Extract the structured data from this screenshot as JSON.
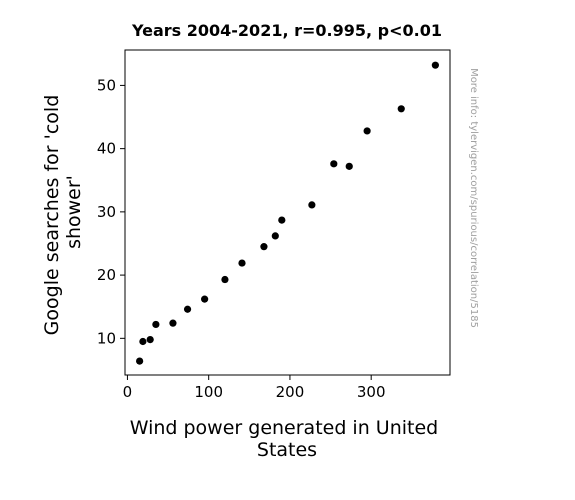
{
  "chart_data": {
    "type": "scatter",
    "title": "Years 2004-2021, r=0.995, p<0.01",
    "xlabel_lines": [
      "Wind power generated in United",
      "States"
    ],
    "ylabel_lines": [
      "Google searches for 'cold",
      "shower'"
    ],
    "xlim": [
      -3,
      397
    ],
    "ylim": [
      4.2,
      55.6
    ],
    "xticks": [
      0,
      100,
      200,
      300
    ],
    "yticks": [
      10,
      20,
      30,
      40,
      50
    ],
    "grid": false,
    "series": [
      {
        "marker_color": "#000000",
        "points": [
          {
            "x": 15,
            "y": 6.4
          },
          {
            "x": 19,
            "y": 9.5
          },
          {
            "x": 28,
            "y": 9.8
          },
          {
            "x": 35,
            "y": 12.2
          },
          {
            "x": 56,
            "y": 12.4
          },
          {
            "x": 74,
            "y": 14.6
          },
          {
            "x": 95,
            "y": 16.2
          },
          {
            "x": 120,
            "y": 19.3
          },
          {
            "x": 141,
            "y": 21.9
          },
          {
            "x": 168,
            "y": 24.5
          },
          {
            "x": 182,
            "y": 26.2
          },
          {
            "x": 190,
            "y": 28.7
          },
          {
            "x": 227,
            "y": 31.1
          },
          {
            "x": 254,
            "y": 37.6
          },
          {
            "x": 273,
            "y": 37.2
          },
          {
            "x": 295,
            "y": 42.8
          },
          {
            "x": 337,
            "y": 46.3
          },
          {
            "x": 379,
            "y": 53.2
          }
        ]
      }
    ],
    "watermark": "More info: tylervigen.com/spurious/correlation/5185"
  }
}
